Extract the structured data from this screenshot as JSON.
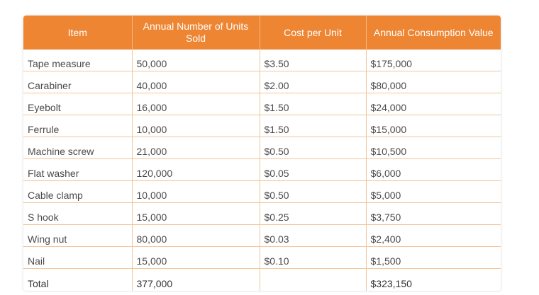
{
  "table": {
    "headers": [
      "Item",
      "Annual Number of Units Sold",
      "Cost per Unit",
      "Annual Consumption Value"
    ],
    "rows": [
      [
        "Tape measure",
        "50,000",
        "$3.50",
        "$175,000"
      ],
      [
        "Carabiner",
        "40,000",
        "$2.00",
        "$80,000"
      ],
      [
        "Eyebolt",
        "16,000",
        "$1.50",
        "$24,000"
      ],
      [
        "Ferrule",
        "10,000",
        "$1.50",
        "$15,000"
      ],
      [
        "Machine screw",
        "21,000",
        "$0.50",
        "$10,500"
      ],
      [
        "Flat washer",
        "120,000",
        "$0.05",
        "$6,000"
      ],
      [
        "Cable clamp",
        "10,000",
        "$0.50",
        "$5,000"
      ],
      [
        "S hook",
        "15,000",
        "$0.25",
        "$3,750"
      ],
      [
        "Wing nut",
        "80,000",
        "$0.03",
        "$2,400"
      ],
      [
        "Nail",
        "15,000",
        "$0.10",
        "$1,500"
      ]
    ],
    "total": [
      "Total",
      "377,000",
      "",
      "$323,150"
    ]
  },
  "colors": {
    "header_bg": "#ee8533",
    "header_text": "#ffffff",
    "grid_line": "#f2c59c"
  }
}
